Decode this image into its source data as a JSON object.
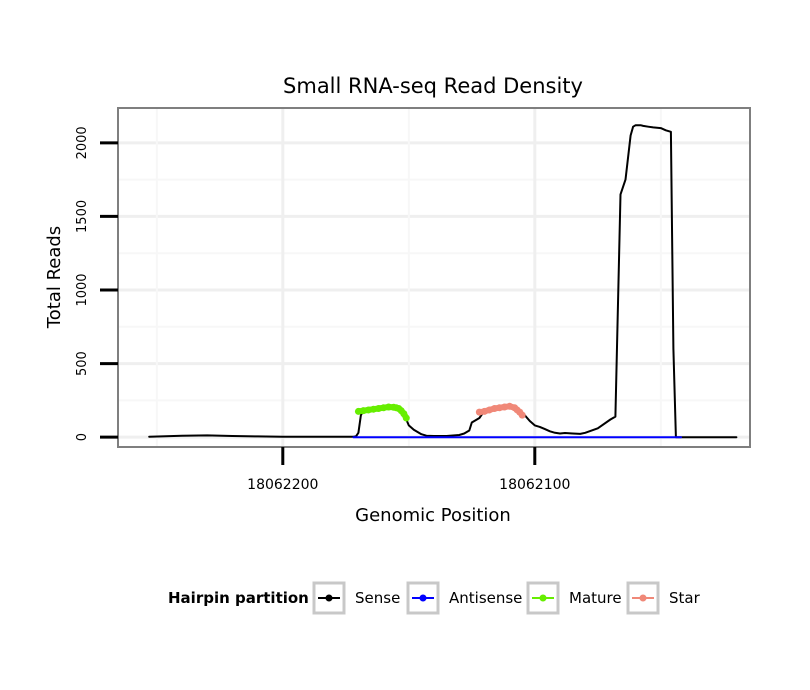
{
  "chart_data": {
    "type": "line",
    "title": "Small RNA-seq Read Density",
    "xlabel": "Genomic Position",
    "ylabel": "Total Reads",
    "x_reversed": true,
    "xlim": [
      18062265,
      18062015
    ],
    "ylim": [
      -60,
      2230
    ],
    "x_ticks": [
      18062200,
      18062100
    ],
    "x_tick_labels": [
      "18062200",
      "18062100"
    ],
    "y_ticks": [
      0,
      500,
      1000,
      1500,
      2000
    ],
    "y_tick_labels": [
      "0",
      "500",
      "1000",
      "1500",
      "2000"
    ],
    "grid": true,
    "legend": {
      "title": "Hairpin partition",
      "position": "bottom",
      "entries": [
        {
          "name": "Sense",
          "color": "#000000"
        },
        {
          "name": "Antisense",
          "color": "#0000ff"
        },
        {
          "name": "Mature",
          "color": "#66ee00"
        },
        {
          "name": "Star",
          "color": "#f08878"
        }
      ]
    },
    "series": [
      {
        "name": "Sense",
        "color": "#000000",
        "x": [
          18062253,
          18062240,
          18062230,
          18062220,
          18062210,
          18062200,
          18062190,
          18062180,
          18062172,
          18062171,
          18062170,
          18062169,
          18062168,
          18062163,
          18062160,
          18062158,
          18062156,
          18062155,
          18062153,
          18062151,
          18062150,
          18062148,
          18062145,
          18062143,
          18062140,
          18062135,
          18062130,
          18062128,
          18062126,
          18062125,
          18062122,
          18062120,
          18062118,
          18062116,
          18062114,
          18062112,
          18062110,
          18062108,
          18062106,
          18062104,
          18062102,
          18062100,
          18062098,
          18062096,
          18062094,
          18062092,
          18062090,
          18062088,
          18062085,
          18062082,
          18062080,
          18062075,
          18062070,
          18062068,
          18062066,
          18062064,
          18062062,
          18062061,
          18062060,
          18062059,
          18062058,
          18062057,
          18062055,
          18062053,
          18062050,
          18062048,
          18062046,
          18062045,
          18062044,
          18062042,
          18062020
        ],
        "y": [
          3,
          10,
          12,
          8,
          5,
          3,
          3,
          3,
          3,
          5,
          30,
          150,
          180,
          190,
          200,
          205,
          200,
          195,
          180,
          120,
          80,
          50,
          20,
          10,
          8,
          8,
          15,
          25,
          45,
          100,
          130,
          180,
          185,
          195,
          200,
          205,
          210,
          200,
          180,
          150,
          110,
          80,
          70,
          55,
          40,
          30,
          25,
          28,
          25,
          22,
          30,
          60,
          120,
          140,
          1650,
          1750,
          2050,
          2110,
          2120,
          2120,
          2120,
          2115,
          2110,
          2105,
          2100,
          2085,
          2075,
          600,
          0,
          0,
          0
        ]
      },
      {
        "name": "Antisense",
        "color": "#0000ff",
        "x": [
          18062172,
          18062042
        ],
        "y": [
          0,
          0
        ]
      },
      {
        "name": "Mature",
        "color": "#66ee00",
        "x": [
          18062170,
          18062168,
          18062166,
          18062164,
          18062162,
          18062160,
          18062158,
          18062156,
          18062155,
          18062154,
          18062153,
          18062152,
          18062151
        ],
        "y": [
          175,
          180,
          185,
          190,
          195,
          200,
          205,
          203,
          200,
          195,
          180,
          160,
          130
        ]
      },
      {
        "name": "Star",
        "color": "#f08878",
        "x": [
          18062122,
          18062120,
          18062118,
          18062116,
          18062114,
          18062112,
          18062110,
          18062108,
          18062107,
          18062106,
          18062105
        ],
        "y": [
          170,
          175,
          185,
          195,
          200,
          205,
          210,
          200,
          185,
          170,
          150
        ]
      }
    ]
  }
}
